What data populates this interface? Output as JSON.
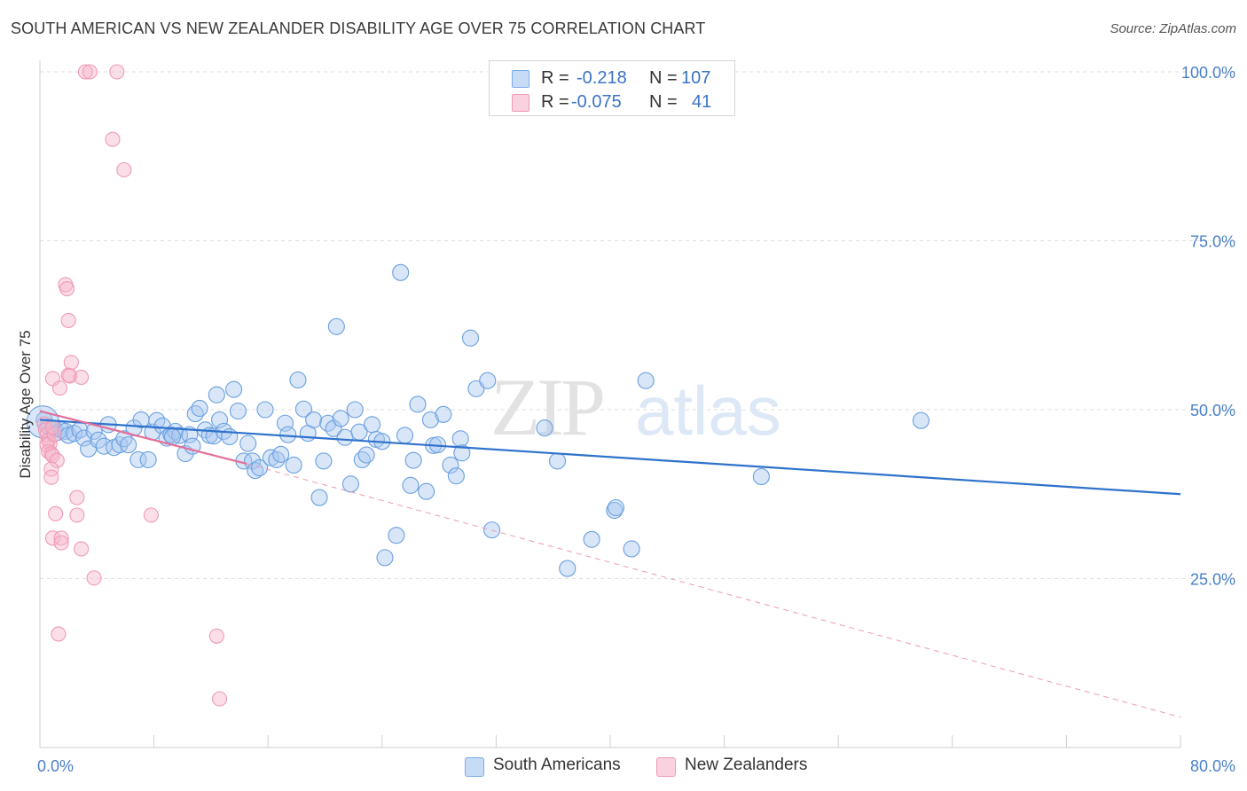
{
  "title": "SOUTH AMERICAN VS NEW ZEALANDER DISABILITY AGE OVER 75 CORRELATION CHART",
  "source": "Source: ZipAtlas.com",
  "watermark": {
    "zip": "ZIP",
    "atlas": "atlas"
  },
  "legend": {
    "rows": [
      {
        "r_label": "R =",
        "r_value": "-0.218",
        "n_label": "N =",
        "n_value": "107",
        "color": "#a9c8f0"
      },
      {
        "r_label": "R =",
        "r_value": "-0.075",
        "n_label": "N =",
        "n_value": "41",
        "color": "#f6b8cb"
      }
    ]
  },
  "bottom_legend": [
    {
      "label": "South Americans",
      "color": "#a9c8f0"
    },
    {
      "label": "New Zealanders",
      "color": "#f6b8cb"
    }
  ],
  "chart_data": {
    "type": "scatter",
    "title": "SOUTH AMERICAN VS NEW ZEALANDER DISABILITY AGE OVER 75 CORRELATION CHART",
    "xlabel": "",
    "ylabel": "Disability Age Over 75",
    "xlim": [
      0,
      80
    ],
    "ylim": [
      0,
      100
    ],
    "x_tick_labels": [
      "0.0%",
      "80.0%"
    ],
    "y_tick_labels": [
      "25.0%",
      "50.0%",
      "75.0%",
      "100.0%"
    ],
    "y_ticks": [
      25,
      50,
      75,
      100
    ],
    "grid": "horizontal dashed",
    "legend_position": "top-center",
    "series": [
      {
        "name": "South Americans",
        "color": "#6aa0e0",
        "trend": {
          "x": [
            0,
            80
          ],
          "y": [
            48.5,
            37.5
          ]
        },
        "points": [
          [
            0.3,
            48.5
          ],
          [
            0.6,
            47.5
          ],
          [
            1.0,
            47.2
          ],
          [
            1.2,
            46.6
          ],
          [
            1.5,
            47.0
          ],
          [
            1.8,
            46.8
          ],
          [
            2.0,
            46.2
          ],
          [
            2.4,
            46.5
          ],
          [
            2.8,
            47.0
          ],
          [
            3.1,
            45.8
          ],
          [
            3.4,
            44.2
          ],
          [
            3.8,
            46.8
          ],
          [
            4.1,
            45.5
          ],
          [
            4.5,
            44.6
          ],
          [
            4.8,
            47.8
          ],
          [
            5.2,
            44.4
          ],
          [
            5.6,
            44.8
          ],
          [
            5.9,
            45.7
          ],
          [
            6.2,
            44.8
          ],
          [
            6.6,
            47.3
          ],
          [
            6.9,
            42.6
          ],
          [
            7.1,
            48.5
          ],
          [
            7.6,
            42.6
          ],
          [
            7.9,
            46.7
          ],
          [
            8.2,
            48.4
          ],
          [
            8.6,
            47.6
          ],
          [
            8.9,
            45.8
          ],
          [
            9.2,
            46.3
          ],
          [
            9.5,
            46.8
          ],
          [
            9.8,
            46.2
          ],
          [
            10.2,
            43.5
          ],
          [
            10.5,
            46.3
          ],
          [
            10.7,
            44.6
          ],
          [
            10.9,
            49.4
          ],
          [
            11.2,
            50.2
          ],
          [
            11.6,
            47.0
          ],
          [
            11.9,
            46.2
          ],
          [
            12.2,
            46.1
          ],
          [
            12.4,
            52.2
          ],
          [
            12.6,
            48.5
          ],
          [
            12.9,
            46.8
          ],
          [
            13.3,
            46.0
          ],
          [
            13.6,
            53.0
          ],
          [
            13.9,
            49.8
          ],
          [
            14.3,
            42.4
          ],
          [
            14.6,
            45.0
          ],
          [
            14.9,
            42.4
          ],
          [
            15.1,
            41.0
          ],
          [
            15.4,
            41.4
          ],
          [
            15.8,
            50.0
          ],
          [
            16.2,
            42.9
          ],
          [
            16.6,
            42.6
          ],
          [
            16.9,
            43.4
          ],
          [
            17.2,
            48.0
          ],
          [
            17.4,
            46.3
          ],
          [
            17.8,
            41.8
          ],
          [
            18.1,
            54.4
          ],
          [
            18.5,
            50.1
          ],
          [
            18.8,
            46.5
          ],
          [
            19.2,
            48.5
          ],
          [
            19.6,
            37.0
          ],
          [
            19.9,
            42.4
          ],
          [
            20.2,
            48.0
          ],
          [
            20.6,
            47.2
          ],
          [
            20.8,
            62.3
          ],
          [
            21.1,
            48.7
          ],
          [
            21.4,
            45.9
          ],
          [
            21.8,
            39.0
          ],
          [
            22.1,
            50.0
          ],
          [
            22.4,
            46.7
          ],
          [
            22.6,
            42.6
          ],
          [
            22.9,
            43.3
          ],
          [
            23.3,
            47.8
          ],
          [
            23.6,
            45.6
          ],
          [
            24.0,
            45.3
          ],
          [
            24.2,
            28.1
          ],
          [
            25.0,
            31.4
          ],
          [
            25.3,
            70.3
          ],
          [
            25.6,
            46.2
          ],
          [
            26.0,
            38.8
          ],
          [
            26.2,
            42.5
          ],
          [
            26.5,
            50.8
          ],
          [
            27.1,
            37.9
          ],
          [
            27.4,
            48.5
          ],
          [
            27.6,
            44.7
          ],
          [
            27.9,
            44.8
          ],
          [
            28.3,
            49.3
          ],
          [
            28.8,
            41.8
          ],
          [
            29.2,
            40.2
          ],
          [
            29.5,
            45.7
          ],
          [
            29.6,
            43.6
          ],
          [
            30.2,
            60.6
          ],
          [
            30.6,
            53.1
          ],
          [
            31.4,
            54.3
          ],
          [
            31.7,
            32.2
          ],
          [
            35.4,
            47.3
          ],
          [
            36.3,
            42.4
          ],
          [
            37.0,
            26.5
          ],
          [
            38.7,
            30.8
          ],
          [
            40.3,
            35.1
          ],
          [
            40.4,
            35.5
          ],
          [
            41.5,
            29.4
          ],
          [
            42.5,
            54.3
          ],
          [
            61.8,
            48.4
          ],
          [
            50.6,
            40.1
          ],
          [
            9.3,
            46.0
          ]
        ]
      },
      {
        "name": "New Zealanders",
        "color": "#f099b5",
        "trend": {
          "x": [
            0,
            14.5
          ],
          "y": [
            49.8,
            42.0
          ]
        },
        "trend_dashed": {
          "x": [
            14.5,
            80
          ],
          "y": [
            42.0,
            4.5
          ]
        },
        "points": [
          [
            3.2,
            100
          ],
          [
            3.5,
            100
          ],
          [
            5.4,
            100
          ],
          [
            5.1,
            90
          ],
          [
            5.9,
            85.5
          ],
          [
            1.8,
            68.5
          ],
          [
            1.9,
            67.9
          ],
          [
            2.0,
            63.2
          ],
          [
            2.2,
            57.0
          ],
          [
            0.9,
            54.6
          ],
          [
            2.0,
            55.1
          ],
          [
            2.1,
            55.0
          ],
          [
            2.9,
            54.8
          ],
          [
            1.4,
            53.2
          ],
          [
            0.3,
            47.9
          ],
          [
            0.4,
            47.0
          ],
          [
            0.5,
            46.3
          ],
          [
            0.6,
            45.5
          ],
          [
            0.7,
            45.0
          ],
          [
            0.5,
            44.8
          ],
          [
            0.6,
            43.8
          ],
          [
            0.8,
            43.5
          ],
          [
            0.9,
            43.2
          ],
          [
            1.2,
            42.5
          ],
          [
            0.8,
            41.2
          ],
          [
            0.8,
            40.0
          ],
          [
            2.6,
            37.0
          ],
          [
            1.1,
            34.6
          ],
          [
            2.6,
            34.4
          ],
          [
            7.8,
            34.4
          ],
          [
            0.9,
            31.0
          ],
          [
            1.5,
            31.0
          ],
          [
            1.5,
            30.3
          ],
          [
            2.9,
            29.4
          ],
          [
            3.8,
            25.1
          ],
          [
            1.3,
            16.8
          ],
          [
            12.4,
            16.5
          ],
          [
            12.6,
            7.2
          ],
          [
            1.0,
            46.3
          ],
          [
            0.9,
            47.4
          ]
        ]
      }
    ]
  }
}
